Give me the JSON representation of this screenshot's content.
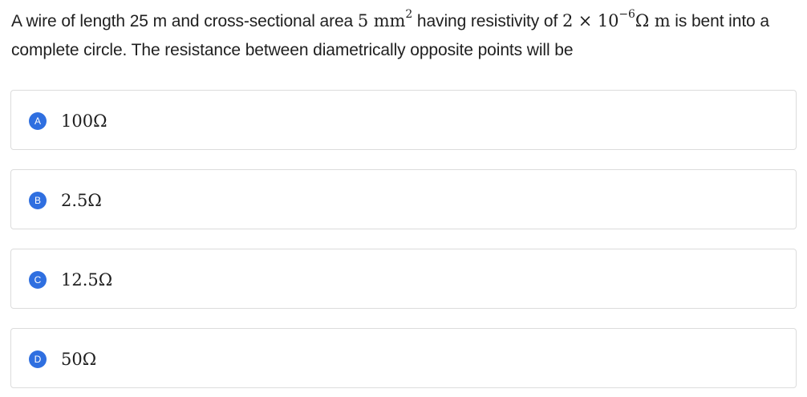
{
  "question": {
    "part1": "A wire of length 25 m and cross-sectional area ",
    "area_value": "5 mm",
    "area_exp": "2",
    "part2": " having resistivity of ",
    "rho_value": "2 × 10",
    "rho_exp": "−6",
    "rho_unit": "Ω m",
    "part3": " is bent into a complete circle. The resistance between diametrically opposite points will be"
  },
  "options": [
    {
      "letter": "A",
      "value": "100Ω"
    },
    {
      "letter": "B",
      "value": "2.5Ω"
    },
    {
      "letter": "C",
      "value": "12.5Ω"
    },
    {
      "letter": "D",
      "value": "50Ω"
    }
  ],
  "colors": {
    "badge": "#2f6fe0",
    "border": "#dcdcdc",
    "text": "#1f1f1f"
  }
}
